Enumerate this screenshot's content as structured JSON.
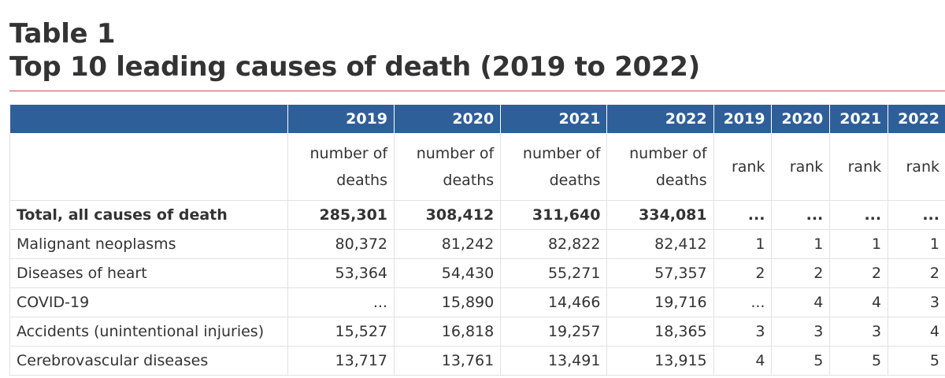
{
  "title": {
    "line1": "Table 1",
    "line2": "Top 10 leading causes of death (2019 to 2022)"
  },
  "header": {
    "years": [
      "2019",
      "2020",
      "2021",
      "2022",
      "2019",
      "2020",
      "2021",
      "2022"
    ],
    "units": {
      "number_line1": "number of",
      "number_line2": "deaths",
      "rank": "rank"
    }
  },
  "rows": [
    {
      "label": "Total, all causes of death",
      "values": [
        "285,301",
        "308,412",
        "311,640",
        "334,081",
        "...",
        "...",
        "...",
        "..."
      ]
    },
    {
      "label": "Malignant neoplasms",
      "values": [
        "80,372",
        "81,242",
        "82,822",
        "82,412",
        "1",
        "1",
        "1",
        "1"
      ]
    },
    {
      "label": "Diseases of heart",
      "values": [
        "53,364",
        "54,430",
        "55,271",
        "57,357",
        "2",
        "2",
        "2",
        "2"
      ]
    },
    {
      "label": "COVID-19",
      "values": [
        "...",
        "15,890",
        "14,466",
        "19,716",
        "...",
        "4",
        "4",
        "3"
      ]
    },
    {
      "label": "Accidents (unintentional injuries)",
      "values": [
        "15,527",
        "16,818",
        "19,257",
        "18,365",
        "3",
        "3",
        "3",
        "4"
      ]
    },
    {
      "label": "Cerebrovascular diseases",
      "values": [
        "13,717",
        "13,761",
        "13,491",
        "13,915",
        "4",
        "5",
        "5",
        "5"
      ]
    }
  ],
  "colors": {
    "header_bg": "#2f5f98",
    "header_text": "#ffffff",
    "rule": "#c44a4a"
  }
}
